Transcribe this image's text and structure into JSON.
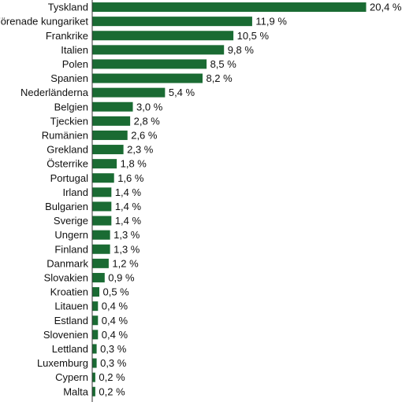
{
  "chart_data": {
    "type": "bar",
    "orientation": "horizontal",
    "categories": [
      "Tyskland",
      "Förenade kungariket",
      "Frankrike",
      "Italien",
      "Polen",
      "Spanien",
      "Nederländerna",
      "Belgien",
      "Tjeckien",
      "Rumänien",
      "Grekland",
      "Österrike",
      "Portugal",
      "Irland",
      "Bulgarien",
      "Sverige",
      "Ungern",
      "Finland",
      "Danmark",
      "Slovakien",
      "Kroatien",
      "Litauen",
      "Estland",
      "Slovenien",
      "Lettland",
      "Luxemburg",
      "Cypern",
      "Malta"
    ],
    "values": [
      20.4,
      11.9,
      10.5,
      9.8,
      8.5,
      8.2,
      5.4,
      3.0,
      2.8,
      2.6,
      2.3,
      1.8,
      1.6,
      1.4,
      1.4,
      1.4,
      1.3,
      1.3,
      1.2,
      0.9,
      0.5,
      0.4,
      0.4,
      0.4,
      0.3,
      0.3,
      0.2,
      0.2
    ],
    "value_labels": [
      "20,4 %",
      "11,9 %",
      "10,5 %",
      "9,8 %",
      "8,5 %",
      "8,2 %",
      "5,4 %",
      "3,0 %",
      "2,8 %",
      "2,6 %",
      "2,3 %",
      "1,8 %",
      "1,6 %",
      "1,4 %",
      "1,4 %",
      "1,4 %",
      "1,3 %",
      "1,3 %",
      "1,2 %",
      "0,9 %",
      "0,5 %",
      "0,4 %",
      "0,4 %",
      "0,4 %",
      "0,3 %",
      "0,3 %",
      "0,2 %",
      "0,2 %"
    ],
    "xlim": [
      0,
      20.4
    ],
    "grid": false,
    "legend": "none",
    "bar_color": "#1a6b33",
    "axis_color": "#333333"
  }
}
